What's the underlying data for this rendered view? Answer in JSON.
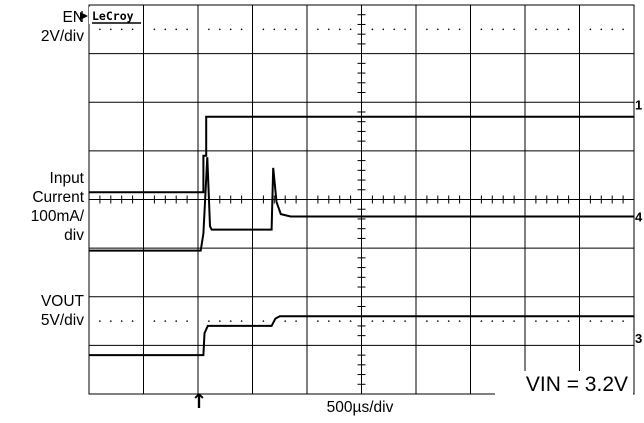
{
  "chart_data": {
    "type": "line",
    "brand": "LeCroy",
    "annotation": "VIN = 3.2V",
    "x_axis": {
      "divisions": 10,
      "scale_label": "500µs/div",
      "trigger_marker": "↑"
    },
    "y_axis": {
      "divisions": 8
    },
    "channel_labels": [
      {
        "lines": [
          "EN",
          "2V/div"
        ]
      },
      {
        "lines": [
          "Input",
          "Current",
          "100mA/",
          "div"
        ]
      },
      {
        "lines": [
          "VOUT",
          "5V/div"
        ]
      }
    ],
    "channel_markers": [
      "1",
      "4",
      "3"
    ],
    "series": [
      {
        "channel": "EN",
        "points": [
          [
            0,
            0.15
          ],
          [
            2.1,
            0.15
          ],
          [
            2.1,
            0.9
          ],
          [
            2.15,
            0.9
          ],
          [
            2.15,
            1.7
          ],
          [
            10,
            1.7
          ]
        ]
      },
      {
        "channel": "Input Current",
        "points": [
          [
            0,
            -1.05
          ],
          [
            2.05,
            -1.05
          ],
          [
            2.1,
            -0.7
          ],
          [
            2.17,
            0.87
          ],
          [
            2.22,
            -0.55
          ],
          [
            2.25,
            -0.62
          ],
          [
            3.35,
            -0.62
          ],
          [
            3.38,
            0.65
          ],
          [
            3.44,
            -0.05
          ],
          [
            3.52,
            -0.3
          ],
          [
            3.7,
            -0.35
          ],
          [
            10,
            -0.35
          ]
        ]
      },
      {
        "channel": "VOUT",
        "points": [
          [
            0,
            -3.2
          ],
          [
            2.1,
            -3.2
          ],
          [
            2.12,
            -2.75
          ],
          [
            2.18,
            -2.6
          ],
          [
            3.35,
            -2.6
          ],
          [
            3.42,
            -2.45
          ],
          [
            3.5,
            -2.4
          ],
          [
            10,
            -2.4
          ]
        ]
      }
    ]
  }
}
